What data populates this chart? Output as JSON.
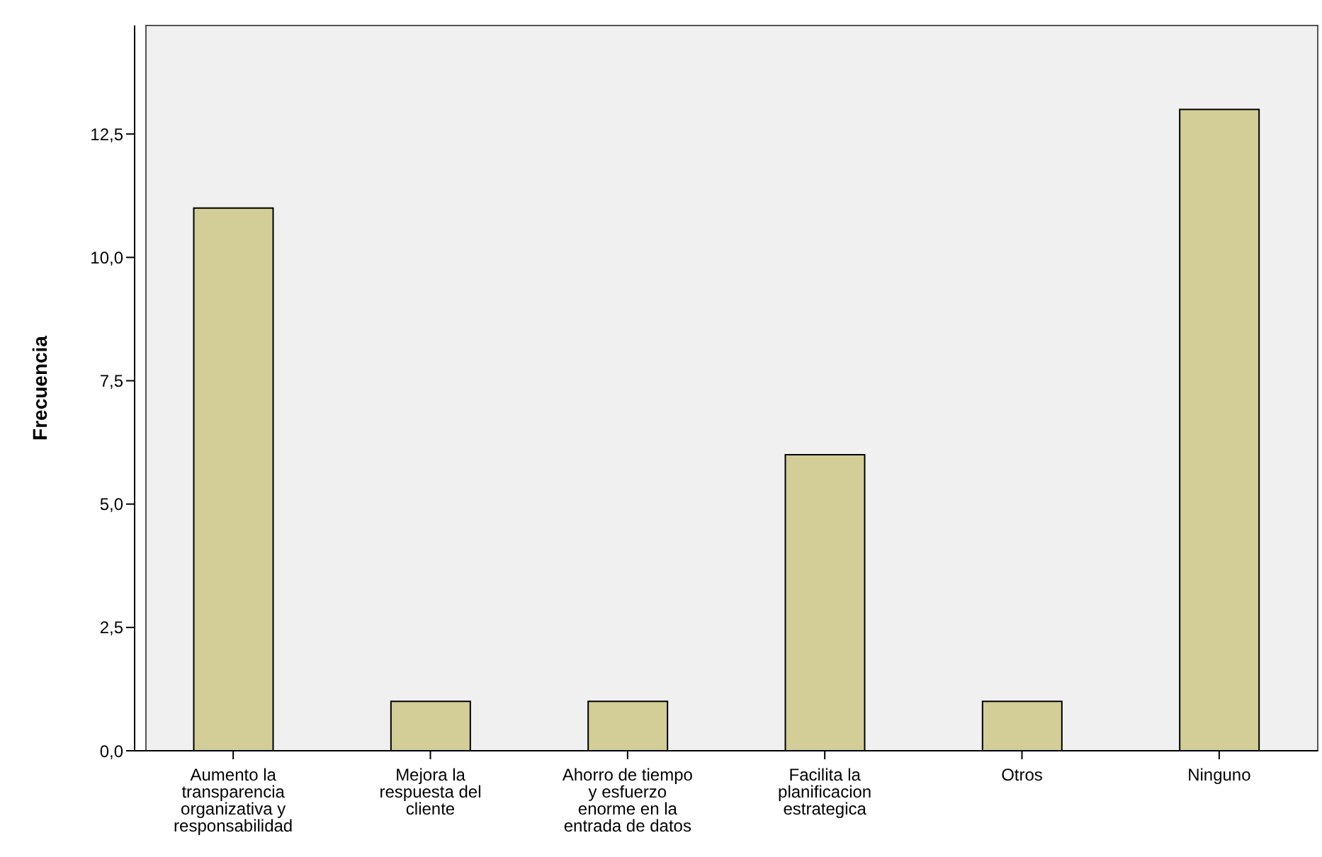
{
  "chart_data": {
    "type": "bar",
    "ylabel": "Frecuencia",
    "categories": [
      "Aumento la transparencia organizativa y responsabilidad",
      "Mejora la respuesta del cliente",
      "Ahorro de tiempo y esfuerzo enorme en la entrada de datos",
      "Facilita la planificacion estrategica",
      "Otros",
      "Ninguno"
    ],
    "values": [
      11,
      1,
      1,
      6,
      1,
      13
    ],
    "color": "#d3ce98",
    "ylim": [
      0,
      14.7
    ],
    "yticks": [
      {
        "value": 0,
        "label": "0,0"
      },
      {
        "value": 2.5,
        "label": "2,5"
      },
      {
        "value": 5,
        "label": "5,0"
      },
      {
        "value": 7.5,
        "label": "7,5"
      },
      {
        "value": 10,
        "label": "10,0"
      },
      {
        "value": 12.5,
        "label": "12,5"
      }
    ],
    "grid": false,
    "legend": false
  }
}
